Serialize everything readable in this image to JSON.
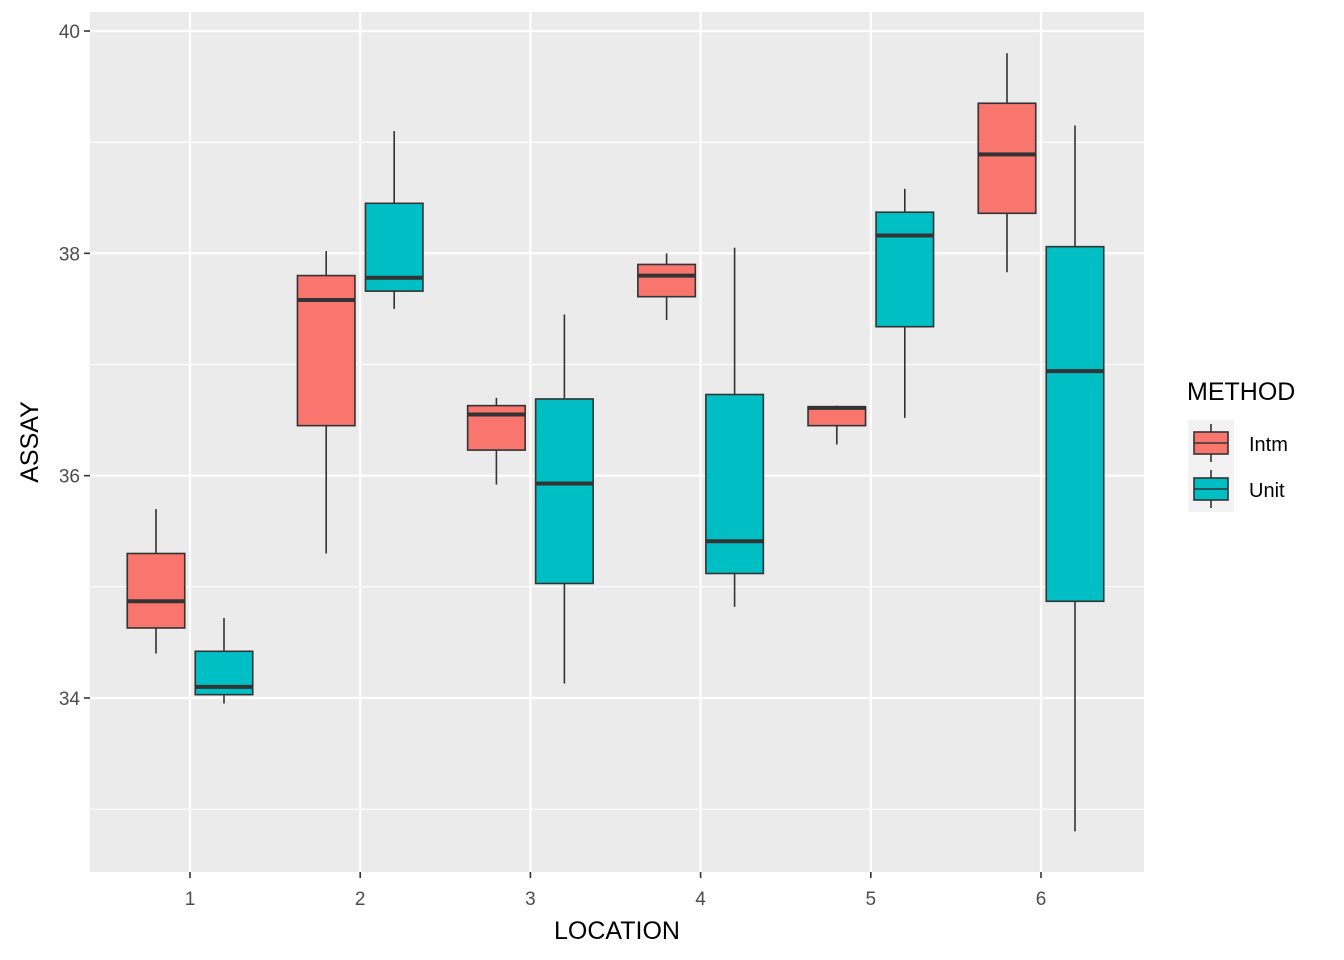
{
  "chart_data": {
    "type": "boxplot",
    "xlabel": "LOCATION",
    "ylabel": "ASSAY",
    "categories": [
      "1",
      "2",
      "3",
      "4",
      "5",
      "6"
    ],
    "ylim": [
      32.5,
      40.2
    ],
    "yticks": [
      34,
      36,
      38,
      40
    ],
    "grid": true,
    "legend": {
      "title": "METHOD",
      "position": "right"
    },
    "series": [
      {
        "name": "Intm",
        "color": "#F8766D",
        "boxes": [
          {
            "category": "1",
            "min": 34.4,
            "q1": 34.63,
            "median": 34.87,
            "q3": 35.3,
            "max": 35.7
          },
          {
            "category": "2",
            "min": 35.3,
            "q1": 36.45,
            "median": 37.58,
            "q3": 37.8,
            "max": 38.02
          },
          {
            "category": "3",
            "min": 35.92,
            "q1": 36.23,
            "median": 36.55,
            "q3": 36.63,
            "max": 36.7
          },
          {
            "category": "4",
            "min": 37.4,
            "q1": 37.61,
            "median": 37.8,
            "q3": 37.9,
            "max": 38.0
          },
          {
            "category": "5",
            "min": 36.28,
            "q1": 36.45,
            "median": 36.61,
            "q3": 36.62,
            "max": 36.63
          },
          {
            "category": "6",
            "min": 37.83,
            "q1": 38.36,
            "median": 38.89,
            "q3": 39.35,
            "max": 39.8
          }
        ]
      },
      {
        "name": "Unit",
        "color": "#00BFC4",
        "boxes": [
          {
            "category": "1",
            "min": 33.95,
            "q1": 34.03,
            "median": 34.1,
            "q3": 34.42,
            "max": 34.72
          },
          {
            "category": "2",
            "min": 37.5,
            "q1": 37.66,
            "median": 37.78,
            "q3": 38.45,
            "max": 39.1
          },
          {
            "category": "3",
            "min": 34.13,
            "q1": 35.03,
            "median": 35.93,
            "q3": 36.69,
            "max": 37.45
          },
          {
            "category": "4",
            "min": 34.82,
            "q1": 35.12,
            "median": 35.41,
            "q3": 36.73,
            "max": 38.05
          },
          {
            "category": "5",
            "min": 36.52,
            "q1": 37.34,
            "median": 38.16,
            "q3": 38.37,
            "max": 38.58
          },
          {
            "category": "6",
            "min": 32.8,
            "q1": 34.87,
            "median": 36.94,
            "q3": 38.06,
            "max": 39.15
          }
        ]
      }
    ]
  }
}
